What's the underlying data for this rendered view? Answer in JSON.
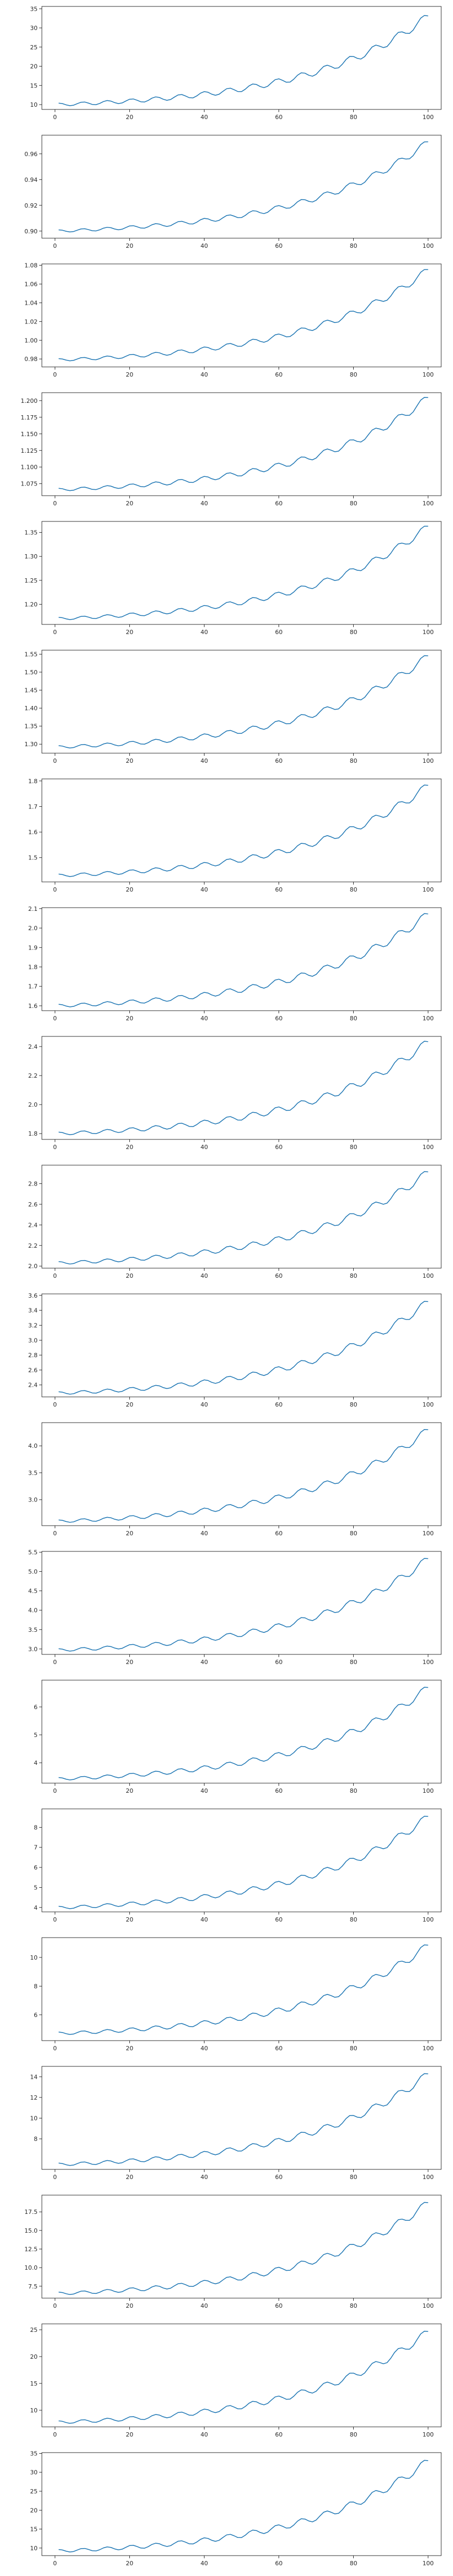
{
  "chart_data": [
    {
      "type": "line",
      "xlim": [
        -3.5,
        103.5
      ],
      "ylim": [
        8.74,
        35.6
      ],
      "xticks": [
        0,
        20,
        40,
        60,
        80,
        100
      ],
      "xtick_labels": [
        "0",
        "20",
        "40",
        "60",
        "80",
        "100"
      ],
      "yticks": [
        10,
        15,
        20,
        25,
        30,
        35
      ],
      "ytick_labels": [
        "10",
        "15",
        "20",
        "25",
        "30",
        "35"
      ],
      "series": [
        {
          "start": 10.0,
          "end": 33.0,
          "amplitude": 1.1,
          "color": "#1f77b4"
        }
      ]
    },
    {
      "type": "line",
      "xlim": [
        -3.5,
        103.5
      ],
      "ylim": [
        0.8945,
        0.9745
      ],
      "xticks": [
        0,
        20,
        40,
        60,
        80,
        100
      ],
      "xtick_labels": [
        "0",
        "20",
        "40",
        "60",
        "80",
        "100"
      ],
      "yticks": [
        0.9,
        0.92,
        0.94,
        0.96
      ],
      "ytick_labels": [
        "0.90",
        "0.92",
        "0.94",
        "0.96"
      ],
      "series": [
        {
          "start": 0.9,
          "end": 0.969,
          "amplitude": 0.0028,
          "color": "#1f77b4"
        }
      ]
    },
    {
      "type": "line",
      "xlim": [
        -3.5,
        103.5
      ],
      "ylim": [
        0.9715,
        1.0815
      ],
      "xticks": [
        0,
        20,
        40,
        60,
        80,
        100
      ],
      "xtick_labels": [
        "0",
        "20",
        "40",
        "60",
        "80",
        "100"
      ],
      "yticks": [
        0.98,
        1.0,
        1.02,
        1.04,
        1.06,
        1.08
      ],
      "ytick_labels": [
        "0.98",
        "1.00",
        "1.02",
        "1.04",
        "1.06",
        "1.08"
      ],
      "series": [
        {
          "start": 0.979,
          "end": 1.075,
          "amplitude": 0.004,
          "color": "#1f77b4"
        }
      ]
    },
    {
      "type": "line",
      "xlim": [
        -3.5,
        103.5
      ],
      "ylim": [
        1.057,
        1.212
      ],
      "xticks": [
        0,
        20,
        40,
        60,
        80,
        100
      ],
      "xtick_labels": [
        "0",
        "20",
        "40",
        "60",
        "80",
        "100"
      ],
      "yticks": [
        1.075,
        1.1,
        1.125,
        1.15,
        1.175,
        1.2
      ],
      "ytick_labels": [
        "1.075",
        "1.100",
        "1.125",
        "1.150",
        "1.175",
        "1.200"
      ],
      "series": [
        {
          "start": 1.066,
          "end": 1.204,
          "amplitude": 0.006,
          "color": "#1f77b4"
        }
      ]
    },
    {
      "type": "line",
      "xlim": [
        -3.5,
        103.5
      ],
      "ylim": [
        1.158,
        1.373
      ],
      "xticks": [
        0,
        20,
        40,
        60,
        80,
        100
      ],
      "xtick_labels": [
        "0",
        "20",
        "40",
        "60",
        "80",
        "100"
      ],
      "yticks": [
        1.2,
        1.25,
        1.3,
        1.35
      ],
      "ytick_labels": [
        "1.20",
        "1.25",
        "1.30",
        "1.35"
      ],
      "series": [
        {
          "start": 1.17,
          "end": 1.362,
          "amplitude": 0.008,
          "color": "#1f77b4"
        }
      ]
    },
    {
      "type": "line",
      "xlim": [
        -3.5,
        103.5
      ],
      "ylim": [
        1.275,
        1.561
      ],
      "xticks": [
        0,
        20,
        40,
        60,
        80,
        100
      ],
      "xtick_labels": [
        "0",
        "20",
        "40",
        "60",
        "80",
        "100"
      ],
      "yticks": [
        1.3,
        1.35,
        1.4,
        1.45,
        1.5,
        1.55
      ],
      "ytick_labels": [
        "1.30",
        "1.35",
        "1.40",
        "1.45",
        "1.50",
        "1.55"
      ],
      "series": [
        {
          "start": 1.292,
          "end": 1.544,
          "amplitude": 0.011,
          "color": "#1f77b4"
        }
      ]
    },
    {
      "type": "line",
      "xlim": [
        -3.5,
        103.5
      ],
      "ylim": [
        1.405,
        1.808
      ],
      "xticks": [
        0,
        20,
        40,
        60,
        80,
        100
      ],
      "xtick_labels": [
        "0",
        "20",
        "40",
        "60",
        "80",
        "100"
      ],
      "yticks": [
        1.5,
        1.6,
        1.7,
        1.8
      ],
      "ytick_labels": [
        "1.5",
        "1.6",
        "1.7",
        "1.8"
      ],
      "series": [
        {
          "start": 1.43,
          "end": 1.781,
          "amplitude": 0.016,
          "color": "#1f77b4"
        }
      ]
    },
    {
      "type": "line",
      "xlim": [
        -3.5,
        103.5
      ],
      "ylim": [
        1.575,
        2.105
      ],
      "xticks": [
        0,
        20,
        40,
        60,
        80,
        100
      ],
      "xtick_labels": [
        "0",
        "20",
        "40",
        "60",
        "80",
        "100"
      ],
      "yticks": [
        1.6,
        1.7,
        1.8,
        1.9,
        2.0,
        2.1
      ],
      "ytick_labels": [
        "1.6",
        "1.7",
        "1.8",
        "1.9",
        "2.0",
        "2.1"
      ],
      "series": [
        {
          "start": 1.6,
          "end": 2.07,
          "amplitude": 0.022,
          "color": "#1f77b4"
        }
      ]
    },
    {
      "type": "line",
      "xlim": [
        -3.5,
        103.5
      ],
      "ylim": [
        1.76,
        2.47
      ],
      "xticks": [
        0,
        20,
        40,
        60,
        80,
        100
      ],
      "xtick_labels": [
        "0",
        "20",
        "40",
        "60",
        "80",
        "100"
      ],
      "yticks": [
        1.8,
        2.0,
        2.2,
        2.4
      ],
      "ytick_labels": [
        "1.8",
        "2.0",
        "2.2",
        "2.4"
      ],
      "series": [
        {
          "start": 1.8,
          "end": 2.43,
          "amplitude": 0.03,
          "color": "#1f77b4"
        }
      ]
    },
    {
      "type": "line",
      "xlim": [
        -3.5,
        103.5
      ],
      "ylim": [
        1.98,
        2.98
      ],
      "xticks": [
        0,
        20,
        40,
        60,
        80,
        100
      ],
      "xtick_labels": [
        "0",
        "20",
        "40",
        "60",
        "80",
        "100"
      ],
      "yticks": [
        2.0,
        2.2,
        2.4,
        2.6,
        2.8
      ],
      "ytick_labels": [
        "2.0",
        "2.2",
        "2.4",
        "2.6",
        "2.8"
      ],
      "series": [
        {
          "start": 2.03,
          "end": 2.91,
          "amplitude": 0.04,
          "color": "#1f77b4"
        }
      ]
    },
    {
      "type": "line",
      "xlim": [
        -3.5,
        103.5
      ],
      "ylim": [
        2.24,
        3.62
      ],
      "xticks": [
        0,
        20,
        40,
        60,
        80,
        100
      ],
      "xtick_labels": [
        "0",
        "20",
        "40",
        "60",
        "80",
        "100"
      ],
      "yticks": [
        2.4,
        2.6,
        2.8,
        3.0,
        3.2,
        3.4,
        3.6
      ],
      "ytick_labels": [
        "2.4",
        "2.6",
        "2.8",
        "3.0",
        "3.2",
        "3.4",
        "3.6"
      ],
      "series": [
        {
          "start": 2.29,
          "end": 3.51,
          "amplitude": 0.055,
          "color": "#1f77b4"
        }
      ]
    },
    {
      "type": "line",
      "xlim": [
        -3.5,
        103.5
      ],
      "ylim": [
        2.52,
        4.43
      ],
      "xticks": [
        0,
        20,
        40,
        60,
        80,
        100
      ],
      "xtick_labels": [
        "0",
        "20",
        "40",
        "60",
        "80",
        "100"
      ],
      "yticks": [
        3.0,
        3.5,
        4.0
      ],
      "ytick_labels": [
        "3.0",
        "3.5",
        "4.0"
      ],
      "series": [
        {
          "start": 2.6,
          "end": 4.29,
          "amplitude": 0.075,
          "color": "#1f77b4"
        }
      ]
    },
    {
      "type": "line",
      "xlim": [
        -3.5,
        103.5
      ],
      "ylim": [
        2.86,
        5.52
      ],
      "xticks": [
        0,
        20,
        40,
        60,
        80,
        100
      ],
      "xtick_labels": [
        "0",
        "20",
        "40",
        "60",
        "80",
        "100"
      ],
      "yticks": [
        3.0,
        3.5,
        4.0,
        4.5,
        5.0,
        5.5
      ],
      "ytick_labels": [
        "3.0",
        "3.5",
        "4.0",
        "4.5",
        "5.0",
        "5.5"
      ],
      "series": [
        {
          "start": 2.97,
          "end": 5.32,
          "amplitude": 0.105,
          "color": "#1f77b4"
        }
      ]
    },
    {
      "type": "line",
      "xlim": [
        -3.5,
        103.5
      ],
      "ylim": [
        3.27,
        6.96
      ],
      "xticks": [
        0,
        20,
        40,
        60,
        80,
        100
      ],
      "xtick_labels": [
        "0",
        "20",
        "40",
        "60",
        "80",
        "100"
      ],
      "yticks": [
        4,
        5,
        6
      ],
      "ytick_labels": [
        "4",
        "5",
        "6"
      ],
      "series": [
        {
          "start": 3.42,
          "end": 6.68,
          "amplitude": 0.145,
          "color": "#1f77b4"
        }
      ]
    },
    {
      "type": "line",
      "xlim": [
        -3.5,
        103.5
      ],
      "ylim": [
        3.78,
        8.92
      ],
      "xticks": [
        0,
        20,
        40,
        60,
        80,
        100
      ],
      "xtick_labels": [
        "0",
        "20",
        "40",
        "60",
        "80",
        "100"
      ],
      "yticks": [
        4,
        5,
        6,
        7,
        8
      ],
      "ytick_labels": [
        "4",
        "5",
        "6",
        "7",
        "8"
      ],
      "series": [
        {
          "start": 3.99,
          "end": 8.52,
          "amplitude": 0.2,
          "color": "#1f77b4"
        }
      ]
    },
    {
      "type": "line",
      "xlim": [
        -3.5,
        103.5
      ],
      "ylim": [
        4.2,
        11.38
      ],
      "xticks": [
        0,
        20,
        40,
        60,
        80,
        100
      ],
      "xtick_labels": [
        "0",
        "20",
        "40",
        "60",
        "80",
        "100"
      ],
      "yticks": [
        6,
        8,
        10
      ],
      "ytick_labels": [
        "6",
        "8",
        "10"
      ],
      "series": [
        {
          "start": 4.7,
          "end": 10.82,
          "amplitude": 0.28,
          "color": "#1f77b4"
        }
      ]
    },
    {
      "type": "line",
      "xlim": [
        -3.5,
        103.5
      ],
      "ylim": [
        5.05,
        15.0
      ],
      "xticks": [
        0,
        20,
        40,
        60,
        80,
        100
      ],
      "xtick_labels": [
        "0",
        "20",
        "40",
        "60",
        "80",
        "100"
      ],
      "yticks": [
        8,
        10,
        12,
        14
      ],
      "ytick_labels": [
        "8",
        "10",
        "12",
        "14"
      ],
      "series": [
        {
          "start": 5.52,
          "end": 14.23,
          "amplitude": 0.39,
          "color": "#1f77b4"
        }
      ]
    },
    {
      "type": "line",
      "xlim": [
        -3.5,
        103.5
      ],
      "ylim": [
        5.9,
        19.75
      ],
      "xticks": [
        0,
        20,
        40,
        60,
        80,
        100
      ],
      "xtick_labels": [
        "0",
        "20",
        "40",
        "60",
        "80",
        "100"
      ],
      "yticks": [
        7.5,
        10.0,
        12.5,
        15.0,
        17.5
      ],
      "ytick_labels": [
        "7.5",
        "10.0",
        "12.5",
        "15.0",
        "17.5"
      ],
      "series": [
        {
          "start": 6.52,
          "end": 18.67,
          "amplitude": 0.55,
          "color": "#1f77b4"
        }
      ]
    },
    {
      "type": "line",
      "xlim": [
        -3.5,
        103.5
      ],
      "ylim": [
        6.9,
        26.1
      ],
      "xticks": [
        0,
        20,
        40,
        60,
        80,
        100
      ],
      "xtick_labels": [
        "0",
        "20",
        "40",
        "60",
        "80",
        "100"
      ],
      "yticks": [
        10,
        15,
        20,
        25
      ],
      "ytick_labels": [
        "10",
        "15",
        "20",
        "25"
      ],
      "series": [
        {
          "start": 7.75,
          "end": 24.59,
          "amplitude": 0.77,
          "color": "#1f77b4"
        }
      ]
    },
    {
      "type": "line",
      "xlim": [
        -3.5,
        103.5
      ],
      "ylim": [
        8.0,
        35.2
      ],
      "xticks": [
        0,
        20,
        40,
        60,
        80,
        100
      ],
      "xtick_labels": [
        "0",
        "20",
        "40",
        "60",
        "80",
        "100"
      ],
      "yticks": [
        10,
        15,
        20,
        25,
        30,
        35
      ],
      "ytick_labels": [
        "10",
        "15",
        "20",
        "25",
        "30",
        "35"
      ],
      "series": [
        {
          "start": 9.23,
          "end": 32.96,
          "amplitude": 1.08,
          "color": "#1f77b4"
        }
      ]
    }
  ]
}
